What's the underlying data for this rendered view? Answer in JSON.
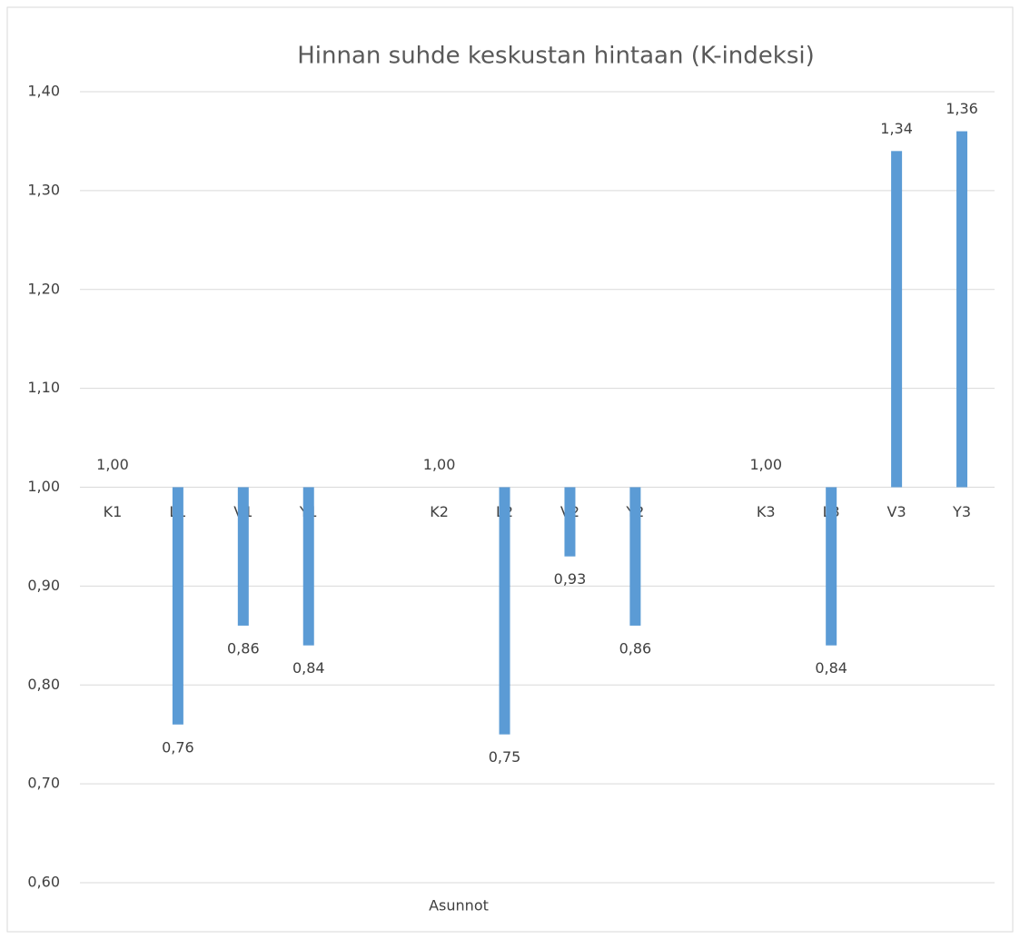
{
  "chart_data": {
    "type": "bar",
    "title": "Hinnan suhde keskustan hintaan (K-indeksi)",
    "x_label": "Asunnot",
    "categories": [
      "K1",
      "L1",
      "V1",
      "Y1",
      null,
      "K2",
      "L2",
      "V2",
      "Y2",
      null,
      "K3",
      "L3",
      "V3",
      "Y3"
    ],
    "values": [
      1,
      0.76,
      0.86,
      0.84,
      null,
      1,
      0.75,
      0.93,
      0.86,
      null,
      1,
      0.84,
      1.34,
      1.36
    ],
    "value_labels": [
      "1,00",
      "0,76",
      "0,86",
      "0,84",
      null,
      "1,00",
      "0,75",
      "0,93",
      "0,86",
      null,
      "1,00",
      "0,84",
      "1,34",
      "1,36"
    ],
    "color": "#5b9bd5",
    "axis_crossing": 1,
    "ylim": [
      0.6,
      1.4
    ],
    "yticks": [
      {
        "value": 0.6,
        "label": "0,60"
      },
      {
        "value": 0.7,
        "label": "0,70"
      },
      {
        "value": 0.8,
        "label": "0,80"
      },
      {
        "value": 0.9,
        "label": "0,90"
      },
      {
        "value": 1,
        "label": "1,00"
      },
      {
        "value": 1.1,
        "label": "1,10"
      },
      {
        "value": 1.2,
        "label": "1,20"
      },
      {
        "value": 1.3,
        "label": "1,30"
      },
      {
        "value": 1.4,
        "label": "1,40"
      }
    ],
    "grid": true
  }
}
